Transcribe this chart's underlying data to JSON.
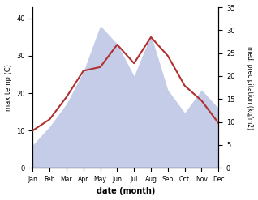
{
  "months": [
    "Jan",
    "Feb",
    "Mar",
    "Apr",
    "May",
    "Jun",
    "Jul",
    "Aug",
    "Sep",
    "Oct",
    "Nov",
    "Dec"
  ],
  "x": [
    1,
    2,
    3,
    4,
    5,
    6,
    7,
    8,
    9,
    10,
    11,
    12
  ],
  "temperature": [
    10,
    13,
    19,
    26,
    27,
    33,
    28,
    35,
    30,
    22,
    18,
    12
  ],
  "precipitation": [
    5,
    9,
    14,
    21,
    31,
    27,
    20,
    29,
    17,
    12,
    17,
    13
  ],
  "temp_color": "#b03030",
  "precip_color_fill": "#c5cce8",
  "title": "",
  "xlabel": "date (month)",
  "ylabel_left": "max temp (C)",
  "ylabel_right": "med. precipitation (kg/m2)",
  "ylim_left": [
    0,
    43
  ],
  "ylim_right": [
    0,
    35
  ],
  "yticks_left": [
    0,
    10,
    20,
    30,
    40
  ],
  "yticks_right": [
    0,
    5,
    10,
    15,
    20,
    25,
    30,
    35
  ],
  "background_color": "#ffffff",
  "fig_width": 3.18,
  "fig_height": 2.47,
  "dpi": 100
}
